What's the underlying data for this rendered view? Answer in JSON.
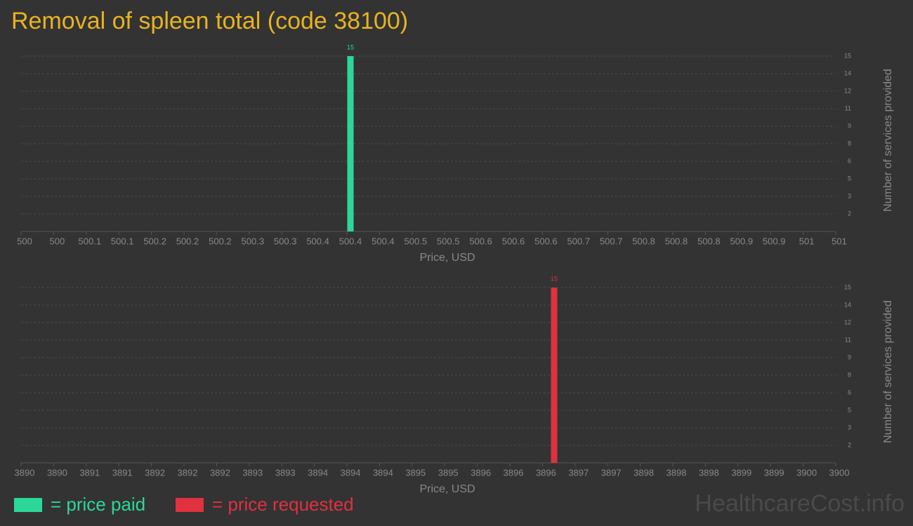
{
  "title": "Removal of spleen total (code 38100)",
  "watermark": "HealthcareCost.info",
  "chart_data": [
    {
      "type": "bar",
      "xlabel": "Price, USD",
      "ylabel": "Number of services provided",
      "grid": true,
      "x": [
        500.4
      ],
      "series": [
        {
          "name": "= price paid",
          "color": "#2bd89a",
          "values": [
            15
          ]
        }
      ],
      "xlim": [
        500,
        501
      ],
      "xticks": [
        {
          "value": 500,
          "label": "500"
        },
        {
          "value": 500.04,
          "label": "500"
        },
        {
          "value": 500.08,
          "label": "500.1"
        },
        {
          "value": 500.12,
          "label": "500.1"
        },
        {
          "value": 500.16,
          "label": "500.2"
        },
        {
          "value": 500.2,
          "label": "500.2"
        },
        {
          "value": 500.24,
          "label": "500.2"
        },
        {
          "value": 500.28,
          "label": "500.3"
        },
        {
          "value": 500.32,
          "label": "500.3"
        },
        {
          "value": 500.36,
          "label": "500.4"
        },
        {
          "value": 500.4,
          "label": "500.4"
        },
        {
          "value": 500.44,
          "label": "500.4"
        },
        {
          "value": 500.48,
          "label": "500.5"
        },
        {
          "value": 500.52,
          "label": "500.5"
        },
        {
          "value": 500.56,
          "label": "500.6"
        },
        {
          "value": 500.6,
          "label": "500.6"
        },
        {
          "value": 500.64,
          "label": "500.6"
        },
        {
          "value": 500.68,
          "label": "500.7"
        },
        {
          "value": 500.72,
          "label": "500.7"
        },
        {
          "value": 500.76,
          "label": "500.8"
        },
        {
          "value": 500.8,
          "label": "500.8"
        },
        {
          "value": 500.84,
          "label": "500.8"
        },
        {
          "value": 500.88,
          "label": "500.9"
        },
        {
          "value": 500.92,
          "label": "500.9"
        },
        {
          "value": 500.96,
          "label": "501"
        },
        {
          "value": 501,
          "label": "501"
        }
      ],
      "ylim": [
        0,
        15
      ],
      "yticks": [
        {
          "value": 1.5,
          "label": "2"
        },
        3,
        {
          "value": 4.5,
          "label": "5"
        },
        6,
        {
          "value": 7.5,
          "label": "8"
        },
        9,
        {
          "value": 10.5,
          "label": "11"
        },
        12,
        {
          "value": 13.5,
          "label": "14"
        },
        15
      ]
    },
    {
      "type": "bar",
      "xlabel": "Price, USD",
      "ylabel": "Number of services provided",
      "grid": true,
      "x": [
        3896.5
      ],
      "series": [
        {
          "name": "= price requested",
          "color": "#e0313f",
          "values": [
            15
          ]
        }
      ],
      "xlim": [
        3890,
        3900
      ],
      "xticks": [
        {
          "value": 3890,
          "label": "3890"
        },
        {
          "value": 3890.4,
          "label": "3890"
        },
        {
          "value": 3890.8,
          "label": "3891"
        },
        {
          "value": 3891.2,
          "label": "3891"
        },
        {
          "value": 3891.6,
          "label": "3892"
        },
        {
          "value": 3892,
          "label": "3892"
        },
        {
          "value": 3892.4,
          "label": "3892"
        },
        {
          "value": 3892.8,
          "label": "3893"
        },
        {
          "value": 3893.2,
          "label": "3893"
        },
        {
          "value": 3893.6,
          "label": "3894"
        },
        {
          "value": 3894,
          "label": "3894"
        },
        {
          "value": 3894.4,
          "label": "3894"
        },
        {
          "value": 3894.8,
          "label": "3895"
        },
        {
          "value": 3895.2,
          "label": "3895"
        },
        {
          "value": 3895.6,
          "label": "3896"
        },
        {
          "value": 3896,
          "label": "3896"
        },
        {
          "value": 3896.4,
          "label": "3896"
        },
        {
          "value": 3896.8,
          "label": "3897"
        },
        {
          "value": 3897.2,
          "label": "3897"
        },
        {
          "value": 3897.6,
          "label": "3898"
        },
        {
          "value": 3898,
          "label": "3898"
        },
        {
          "value": 3898.4,
          "label": "3898"
        },
        {
          "value": 3898.8,
          "label": "3899"
        },
        {
          "value": 3899.2,
          "label": "3899"
        },
        {
          "value": 3899.6,
          "label": "3900"
        },
        {
          "value": 3900,
          "label": "3900"
        }
      ],
      "ylim": [
        0,
        15
      ],
      "yticks": [
        {
          "value": 1.5,
          "label": "2"
        },
        3,
        {
          "value": 4.5,
          "label": "5"
        },
        6,
        {
          "value": 7.5,
          "label": "8"
        },
        9,
        {
          "value": 10.5,
          "label": "11"
        },
        12,
        {
          "value": 13.5,
          "label": "14"
        },
        15
      ]
    }
  ]
}
